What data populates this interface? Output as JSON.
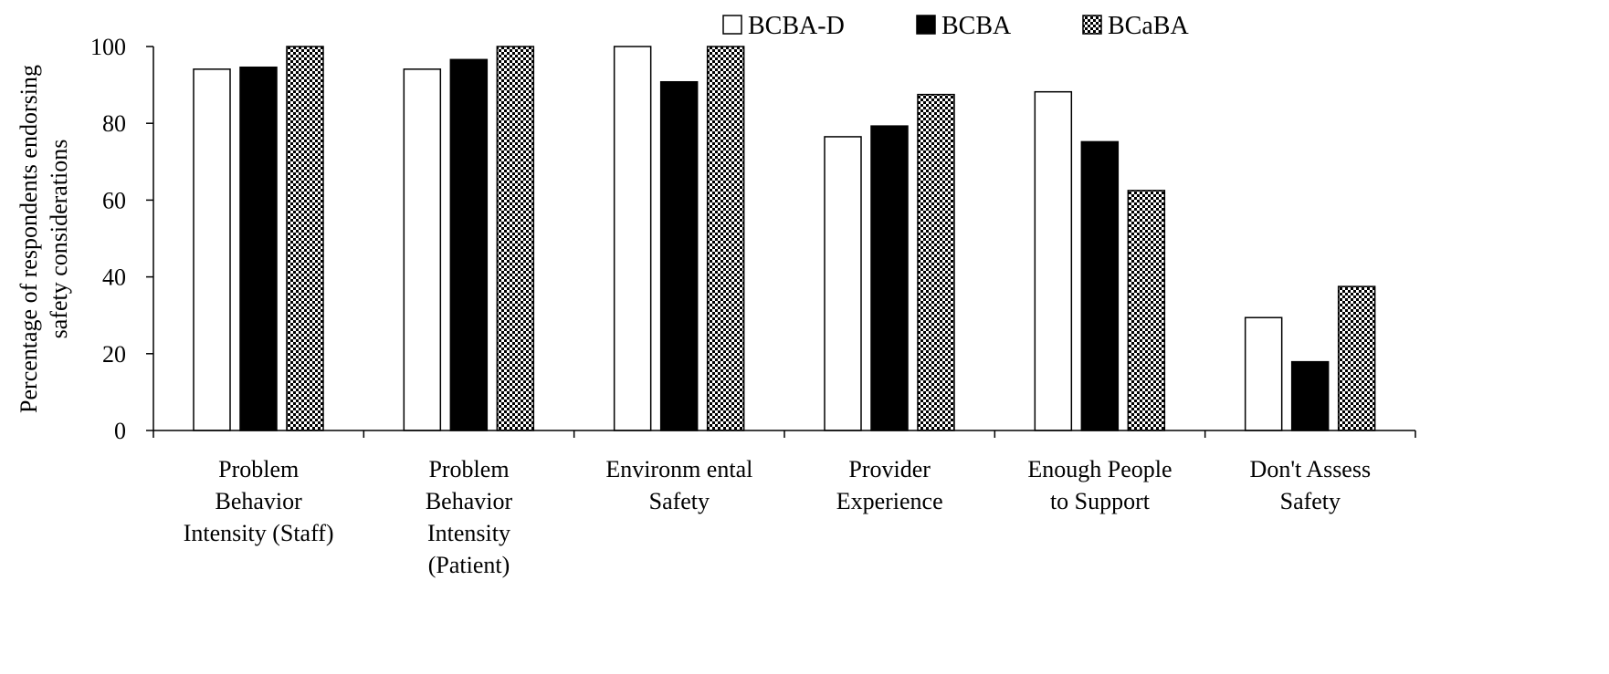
{
  "chart_data": {
    "type": "bar",
    "title": "",
    "xlabel": "",
    "ylabel": "Percentage of respondents endorsing safety considerations",
    "ylabel_lines": [
      "Percentage of respondents endorsing",
      "safety considerations"
    ],
    "ylim": [
      0,
      100
    ],
    "yticks": [
      0,
      20,
      40,
      60,
      80,
      100
    ],
    "grid": false,
    "legend_position": "top-right",
    "categories": [
      "Problem Behavior Intensity (Staff)",
      "Problem Behavior Intensity (Patient)",
      "Environmental Safety",
      "Provider Experience",
      "Enough People to Support",
      "Don't Assess Safety"
    ],
    "category_lines": [
      [
        "Problem",
        "Behavior",
        "Intensity (Staff)"
      ],
      [
        "Problem",
        "Behavior",
        "Intensity",
        "(Patient)"
      ],
      [
        "Environm ental",
        "Safety"
      ],
      [
        "Provider",
        "Experience"
      ],
      [
        "Enough People",
        "to Support"
      ],
      [
        "Don't Assess",
        "Safety"
      ]
    ],
    "series": [
      {
        "name": "BCBA-D",
        "fill": "white",
        "values": [
          94.1,
          94.1,
          100,
          76.5,
          88.2,
          29.4
        ]
      },
      {
        "name": "BCBA",
        "fill": "black",
        "values": [
          94.6,
          96.6,
          90.8,
          79.3,
          75.2,
          17.9
        ]
      },
      {
        "name": "BCaBA",
        "fill": "checker",
        "values": [
          100,
          100,
          100,
          87.5,
          62.5,
          37.5
        ]
      }
    ],
    "colors": {
      "bar_outline": "#000000",
      "bcba_d": "#ffffff",
      "bcba": "#000000",
      "bcaba_dark": "#000000",
      "bcaba_light": "#ffffff"
    }
  }
}
